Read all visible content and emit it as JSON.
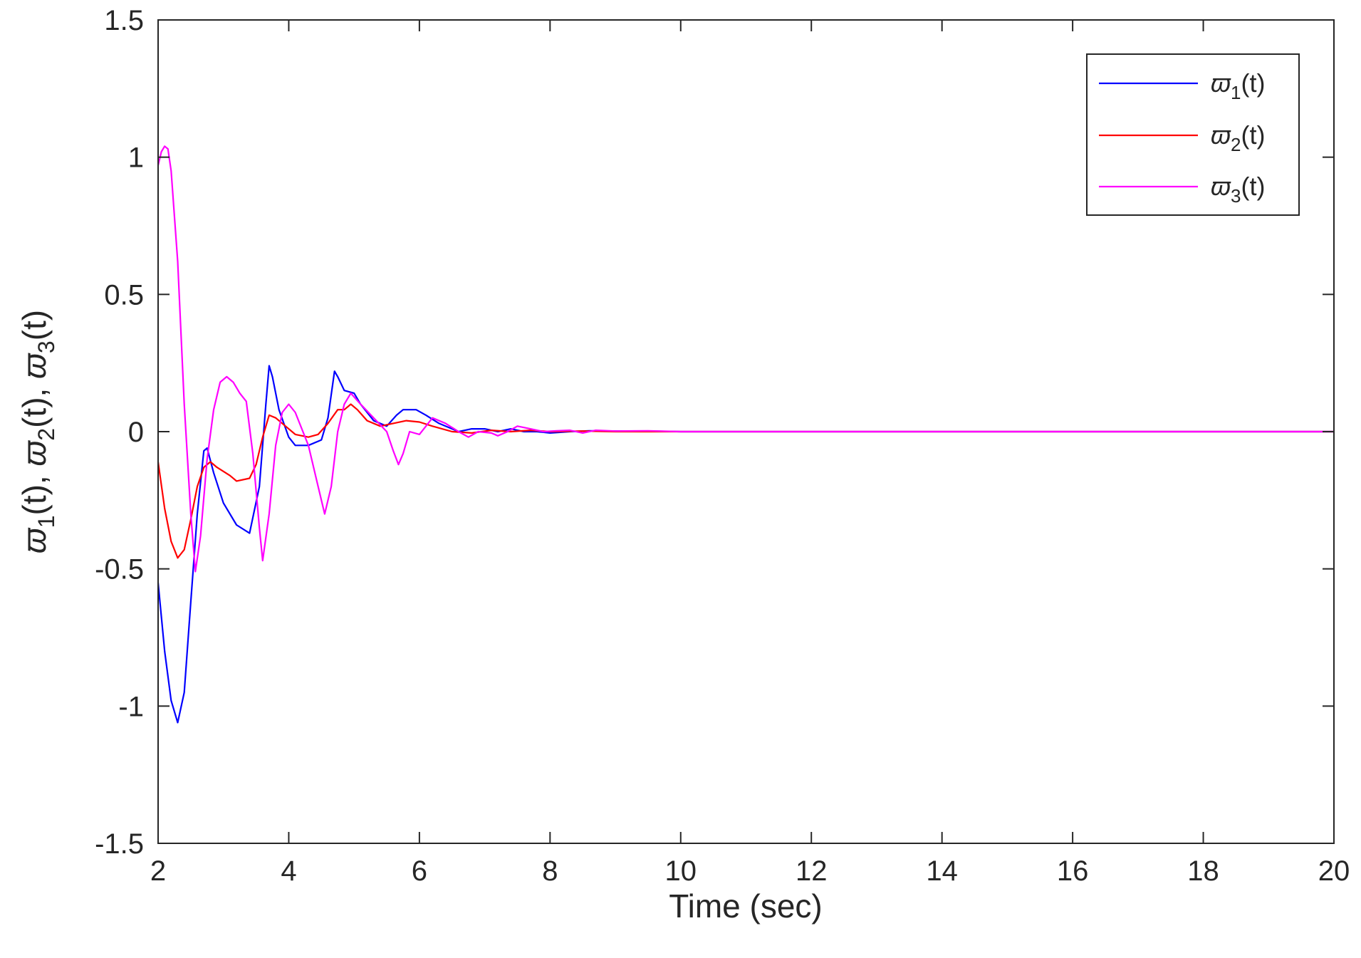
{
  "chart_data": {
    "type": "line",
    "xlabel": "Time (sec)",
    "ylabel": {
      "parts": [
        {
          "name": "ϖ",
          "sub": "1",
          "suffix": "(t), "
        },
        {
          "name": "ϖ",
          "sub": "2",
          "suffix": "(t), "
        },
        {
          "name": "ϖ",
          "sub": "3",
          "suffix": "(t)"
        }
      ]
    },
    "xlim": [
      2,
      20
    ],
    "ylim": [
      -1.5,
      1.5
    ],
    "xticks": [
      2,
      4,
      6,
      8,
      10,
      12,
      14,
      16,
      18,
      20
    ],
    "yticks": [
      -1.5,
      -1,
      -0.5,
      0,
      0.5,
      1,
      1.5
    ],
    "xtick_labels": [
      "2",
      "4",
      "6",
      "8",
      "10",
      "12",
      "14",
      "16",
      "18",
      "20"
    ],
    "ytick_labels": [
      "-1.5",
      "-1",
      "-0.5",
      "0",
      "0.5",
      "1",
      "1.5"
    ],
    "grid": false,
    "legend_position": "top-right",
    "series": [
      {
        "name": "ϖ1(t)",
        "legend": {
          "name": "ϖ",
          "sub": "1",
          "suffix": "(t)"
        },
        "color": "#0000ff",
        "points": [
          [
            2.0,
            -0.55
          ],
          [
            2.1,
            -0.8
          ],
          [
            2.2,
            -0.98
          ],
          [
            2.3,
            -1.06
          ],
          [
            2.4,
            -0.95
          ],
          [
            2.5,
            -0.62
          ],
          [
            2.6,
            -0.3
          ],
          [
            2.7,
            -0.07
          ],
          [
            2.75,
            -0.06
          ],
          [
            2.85,
            -0.15
          ],
          [
            3.0,
            -0.26
          ],
          [
            3.2,
            -0.34
          ],
          [
            3.4,
            -0.37
          ],
          [
            3.55,
            -0.2
          ],
          [
            3.65,
            0.1
          ],
          [
            3.7,
            0.24
          ],
          [
            3.75,
            0.2
          ],
          [
            3.85,
            0.08
          ],
          [
            4.0,
            -0.02
          ],
          [
            4.1,
            -0.05
          ],
          [
            4.3,
            -0.05
          ],
          [
            4.5,
            -0.03
          ],
          [
            4.6,
            0.05
          ],
          [
            4.7,
            0.22
          ],
          [
            4.75,
            0.2
          ],
          [
            4.85,
            0.15
          ],
          [
            5.0,
            0.14
          ],
          [
            5.1,
            0.1
          ],
          [
            5.3,
            0.04
          ],
          [
            5.5,
            0.02
          ],
          [
            5.65,
            0.06
          ],
          [
            5.75,
            0.08
          ],
          [
            5.95,
            0.08
          ],
          [
            6.1,
            0.06
          ],
          [
            6.3,
            0.03
          ],
          [
            6.5,
            0.01
          ],
          [
            6.6,
            0.0
          ],
          [
            6.8,
            0.01
          ],
          [
            7.0,
            0.01
          ],
          [
            7.2,
            0.0
          ],
          [
            7.4,
            0.01
          ],
          [
            7.6,
            0.0
          ],
          [
            7.8,
            0.0
          ],
          [
            8.0,
            -0.005
          ],
          [
            8.3,
            0.0
          ],
          [
            8.6,
            0.003
          ],
          [
            9.0,
            0.002
          ],
          [
            9.5,
            0.002
          ],
          [
            10.0,
            0.0
          ],
          [
            20.0,
            0.0
          ]
        ]
      },
      {
        "name": "ϖ2(t)",
        "legend": {
          "name": "ϖ",
          "sub": "2",
          "suffix": "(t)"
        },
        "color": "#ff0000",
        "points": [
          [
            2.0,
            -0.11
          ],
          [
            2.1,
            -0.28
          ],
          [
            2.2,
            -0.4
          ],
          [
            2.3,
            -0.46
          ],
          [
            2.4,
            -0.43
          ],
          [
            2.5,
            -0.32
          ],
          [
            2.6,
            -0.2
          ],
          [
            2.7,
            -0.13
          ],
          [
            2.8,
            -0.11
          ],
          [
            2.9,
            -0.13
          ],
          [
            3.1,
            -0.16
          ],
          [
            3.2,
            -0.18
          ],
          [
            3.4,
            -0.17
          ],
          [
            3.5,
            -0.12
          ],
          [
            3.6,
            -0.02
          ],
          [
            3.7,
            0.06
          ],
          [
            3.8,
            0.05
          ],
          [
            3.95,
            0.02
          ],
          [
            4.1,
            -0.01
          ],
          [
            4.3,
            -0.02
          ],
          [
            4.45,
            -0.01
          ],
          [
            4.6,
            0.03
          ],
          [
            4.75,
            0.08
          ],
          [
            4.85,
            0.08
          ],
          [
            4.95,
            0.1
          ],
          [
            5.05,
            0.08
          ],
          [
            5.2,
            0.04
          ],
          [
            5.4,
            0.02
          ],
          [
            5.6,
            0.03
          ],
          [
            5.8,
            0.04
          ],
          [
            6.0,
            0.035
          ],
          [
            6.2,
            0.02
          ],
          [
            6.5,
            0.0
          ],
          [
            6.8,
            -0.005
          ],
          [
            7.1,
            0.005
          ],
          [
            7.4,
            0.0
          ],
          [
            7.7,
            0.005
          ],
          [
            8.0,
            0.0
          ],
          [
            8.5,
            0.002
          ],
          [
            9.0,
            0.0
          ],
          [
            20.0,
            0.0
          ]
        ]
      },
      {
        "name": "ϖ3(t)",
        "legend": {
          "name": "ϖ",
          "sub": "3",
          "suffix": "(t)"
        },
        "color": "#ff00ff",
        "points": [
          [
            2.0,
            0.97
          ],
          [
            2.05,
            1.02
          ],
          [
            2.1,
            1.04
          ],
          [
            2.15,
            1.03
          ],
          [
            2.2,
            0.95
          ],
          [
            2.3,
            0.62
          ],
          [
            2.4,
            0.1
          ],
          [
            2.5,
            -0.3
          ],
          [
            2.57,
            -0.51
          ],
          [
            2.65,
            -0.38
          ],
          [
            2.75,
            -0.1
          ],
          [
            2.85,
            0.08
          ],
          [
            2.95,
            0.18
          ],
          [
            3.05,
            0.2
          ],
          [
            3.15,
            0.18
          ],
          [
            3.25,
            0.14
          ],
          [
            3.35,
            0.11
          ],
          [
            3.45,
            -0.08
          ],
          [
            3.55,
            -0.35
          ],
          [
            3.6,
            -0.47
          ],
          [
            3.7,
            -0.3
          ],
          [
            3.8,
            -0.05
          ],
          [
            3.9,
            0.07
          ],
          [
            4.0,
            0.1
          ],
          [
            4.1,
            0.07
          ],
          [
            4.3,
            -0.05
          ],
          [
            4.45,
            -0.2
          ],
          [
            4.55,
            -0.3
          ],
          [
            4.65,
            -0.2
          ],
          [
            4.75,
            0.0
          ],
          [
            4.85,
            0.1
          ],
          [
            4.95,
            0.14
          ],
          [
            5.1,
            0.1
          ],
          [
            5.3,
            0.05
          ],
          [
            5.5,
            0.0
          ],
          [
            5.6,
            -0.07
          ],
          [
            5.68,
            -0.12
          ],
          [
            5.75,
            -0.08
          ],
          [
            5.85,
            0.0
          ],
          [
            6.0,
            -0.01
          ],
          [
            6.1,
            0.02
          ],
          [
            6.2,
            0.05
          ],
          [
            6.4,
            0.03
          ],
          [
            6.6,
            0.0
          ],
          [
            6.75,
            -0.02
          ],
          [
            6.9,
            0.0
          ],
          [
            7.1,
            -0.005
          ],
          [
            7.2,
            -0.015
          ],
          [
            7.35,
            0.0
          ],
          [
            7.5,
            0.02
          ],
          [
            7.7,
            0.01
          ],
          [
            7.9,
            0.0
          ],
          [
            8.1,
            0.003
          ],
          [
            8.3,
            0.005
          ],
          [
            8.5,
            -0.005
          ],
          [
            8.7,
            0.005
          ],
          [
            9.0,
            0.002
          ],
          [
            9.5,
            0.003
          ],
          [
            10.0,
            0.0
          ],
          [
            20.0,
            0.0
          ]
        ]
      }
    ]
  }
}
